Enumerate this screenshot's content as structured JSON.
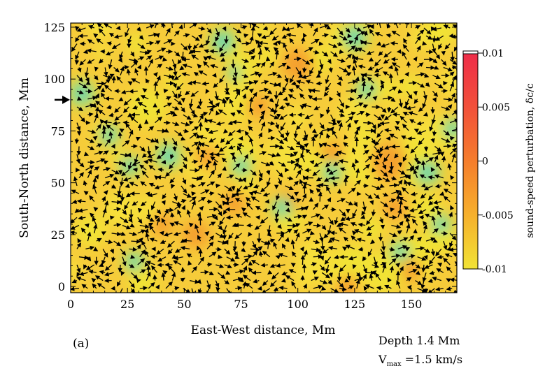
{
  "chart_data": {
    "type": "heatmap",
    "panel_label": "(a)",
    "xlabel": "East-West distance, Mm",
    "ylabel": "South-North distance, Mm",
    "xlim": [
      0,
      170
    ],
    "ylim": [
      -3,
      127
    ],
    "xticks": [
      0,
      25,
      50,
      75,
      100,
      125,
      150
    ],
    "yticks": [
      0,
      25,
      50,
      75,
      100,
      125
    ],
    "colorbar": {
      "label": "sound-speed perturbation, δc/c",
      "range": [
        -0.01,
        0.01
      ],
      "ticks": [
        -0.01,
        -0.005,
        0,
        0.005,
        0.01
      ],
      "tick_labels": [
        "-0.01",
        "-0.005",
        "0",
        "0.005",
        "0.01"
      ],
      "colors": [
        "#f1e336",
        "#f6b02c",
        "#f57d2c",
        "#f2503a",
        "#ee2d49"
      ]
    },
    "cool_regions": [
      {
        "x": 5,
        "y": 93,
        "r": 5
      },
      {
        "x": 17,
        "y": 73,
        "r": 4
      },
      {
        "x": 43,
        "y": 63,
        "r": 5
      },
      {
        "x": 26,
        "y": 58,
        "r": 4
      },
      {
        "x": 75,
        "y": 58,
        "r": 4
      },
      {
        "x": 67,
        "y": 118,
        "r": 5
      },
      {
        "x": 93,
        "y": 38,
        "r": 4
      },
      {
        "x": 115,
        "y": 55,
        "r": 4
      },
      {
        "x": 157,
        "y": 55,
        "r": 5
      },
      {
        "x": 28,
        "y": 12,
        "r": 4
      },
      {
        "x": 163,
        "y": 30,
        "r": 4
      },
      {
        "x": 145,
        "y": 17,
        "r": 4
      },
      {
        "x": 125,
        "y": 120,
        "r": 5
      },
      {
        "x": 168,
        "y": 76,
        "r": 4
      },
      {
        "x": 130,
        "y": 95,
        "r": 4
      },
      {
        "x": 72,
        "y": 103,
        "r": 3
      }
    ],
    "warm_regions": [
      {
        "x": 100,
        "y": 107,
        "r": 7
      },
      {
        "x": 95,
        "y": 40,
        "r": 6
      },
      {
        "x": 140,
        "y": 60,
        "r": 8
      },
      {
        "x": 60,
        "y": 62,
        "r": 5
      },
      {
        "x": 72,
        "y": 40,
        "r": 5
      },
      {
        "x": 55,
        "y": 25,
        "r": 6
      },
      {
        "x": 150,
        "y": 8,
        "r": 5
      },
      {
        "x": 82,
        "y": 87,
        "r": 5
      },
      {
        "x": 115,
        "y": 65,
        "r": 5
      },
      {
        "x": 122,
        "y": 0,
        "r": 5
      },
      {
        "x": 40,
        "y": 30,
        "r": 5
      },
      {
        "x": 143,
        "y": 38,
        "r": 5
      }
    ],
    "marker": {
      "symbol": "arrow",
      "y": 90
    },
    "annotations": [
      "Depth 1.4 Mm"
    ],
    "vmax": {
      "symbol": "V",
      "subscript": "max",
      "value": "=1.5 km/s"
    }
  }
}
